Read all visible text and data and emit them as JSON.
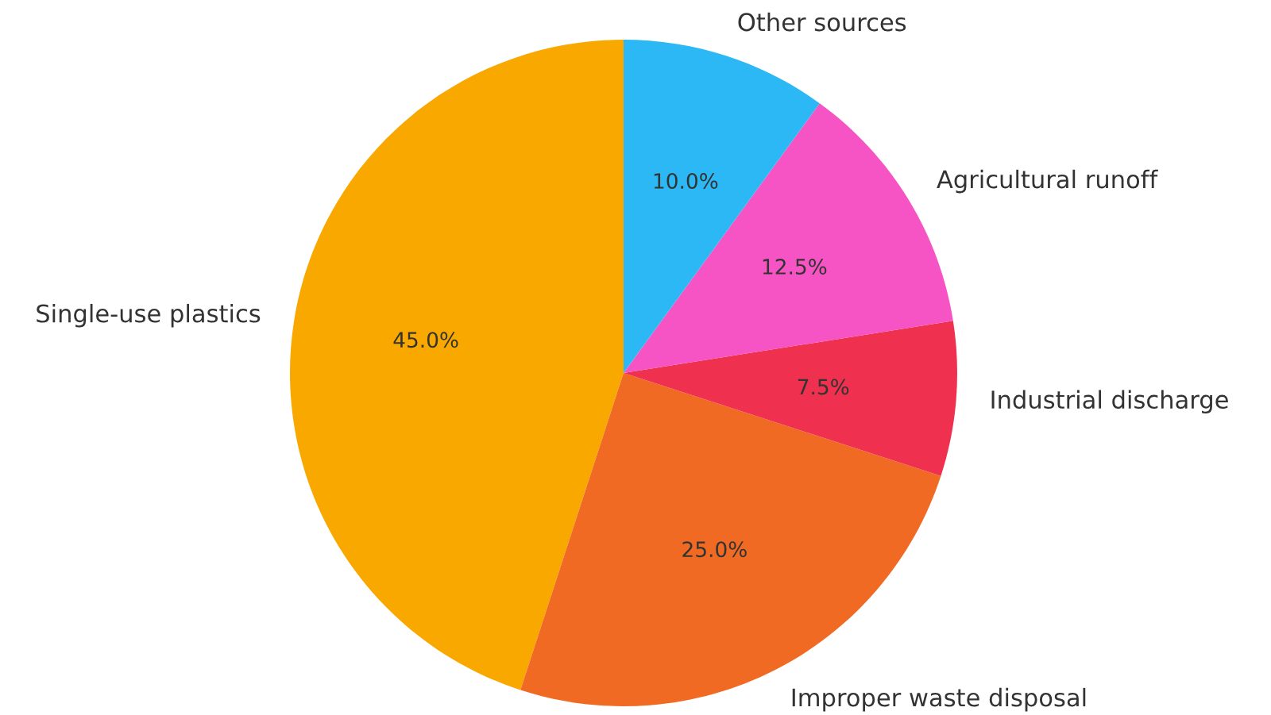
{
  "chart_data": {
    "type": "pie",
    "categories": [
      "Single-use plastics",
      "Improper waste disposal",
      "Industrial discharge",
      "Agricultural runoff",
      "Other sources"
    ],
    "values": [
      45,
      25,
      7.5,
      12.5,
      10
    ],
    "value_labels": [
      "45.0%",
      "25.0%",
      "7.5%",
      "12.5%",
      "10.0%"
    ],
    "colors": [
      "#f9a800",
      "#f06a23",
      "#f0304f",
      "#f654c4",
      "#2bb8f5"
    ]
  }
}
